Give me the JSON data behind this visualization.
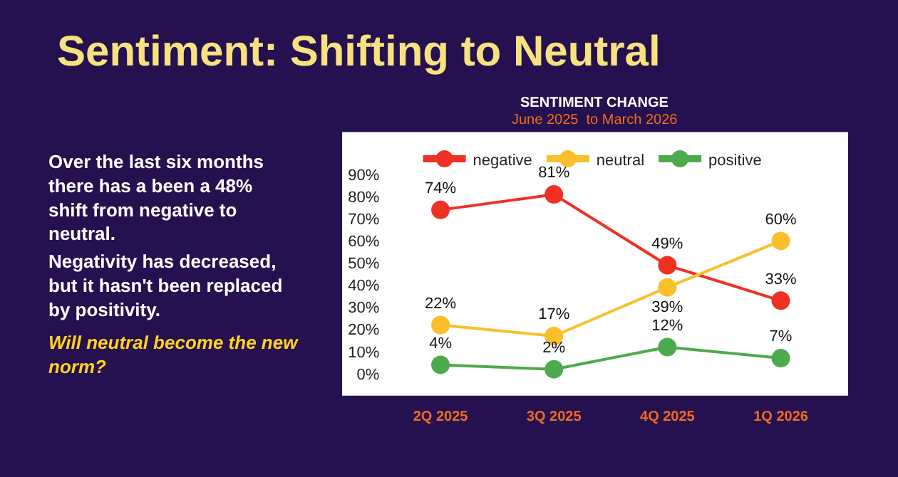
{
  "chart_data": {
    "type": "line",
    "title": "Sentiment: Shifting to Neutral",
    "subtitle": "SENTIMENT CHANGE",
    "annotations": [
      "June 2025  to March 2026",
      "Over the last six months there has a been a 48% shift from negative to neutral.",
      "Negativity has decreased, but it hasn't been replaced by positivity.",
      "Will neutral become the new norm?"
    ],
    "categories": [
      "2Q 2025",
      "3Q 2025",
      "4Q 2025",
      "1Q 2026"
    ],
    "series": [
      {
        "name": "negative",
        "color": "#ee3124",
        "values": [
          74,
          81,
          49,
          33
        ],
        "value_labels": [
          "74%",
          "81%",
          "49%",
          "33%"
        ]
      },
      {
        "name": "neutral",
        "color": "#f9c02c",
        "values": [
          22,
          17,
          39,
          60
        ],
        "value_labels": [
          "22%",
          "17%",
          "39%",
          "60%"
        ]
      },
      {
        "name": "positive",
        "color": "#4daa4c",
        "values": [
          4,
          2,
          12,
          7
        ],
        "value_labels": [
          "4%",
          "2%",
          "12%",
          "7%"
        ]
      }
    ],
    "ylim": [
      0,
      90
    ],
    "yticks": [
      {
        "value": 0,
        "label": "0%"
      },
      {
        "value": 10,
        "label": "10%"
      },
      {
        "value": 20,
        "label": "20%"
      },
      {
        "value": 30,
        "label": "30%"
      },
      {
        "value": 40,
        "label": "40%"
      },
      {
        "value": 50,
        "label": "50%"
      },
      {
        "value": 60,
        "label": "60%"
      },
      {
        "value": 70,
        "label": "70%"
      },
      {
        "value": 80,
        "label": "80%"
      },
      {
        "value": 90,
        "label": "90%"
      }
    ],
    "legend": "top",
    "marker": "circle",
    "line_style": "solid"
  }
}
